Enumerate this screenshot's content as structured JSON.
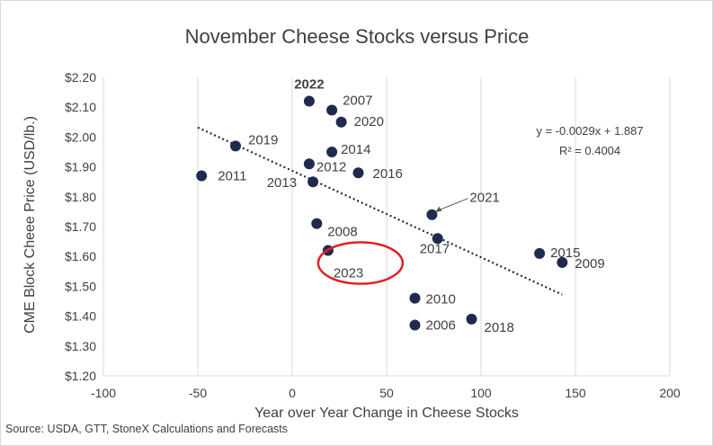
{
  "chart_data": {
    "type": "scatter",
    "title": "November Cheese Stocks versus Price",
    "xlabel": "Year over Year Change in Cheese Stocks",
    "ylabel": "CME Block Cheee Price (USD/lb.)",
    "source": "Source: USDA, GTT, StoneX Calculations and Forecasts",
    "xlim": [
      -100,
      200
    ],
    "ylim": [
      1.2,
      2.2
    ],
    "x_ticks": [
      -100,
      -50,
      0,
      50,
      100,
      150,
      200
    ],
    "x_tick_labels": [
      "-100",
      "-50",
      "0",
      "50",
      "100",
      "150",
      "200"
    ],
    "y_ticks": [
      1.2,
      1.3,
      1.4,
      1.5,
      1.6,
      1.7,
      1.8,
      1.9,
      2.0,
      2.1,
      2.2
    ],
    "y_tick_labels": [
      "$1.20",
      "$1.30",
      "$1.40",
      "$1.50",
      "$1.60",
      "$1.70",
      "$1.80",
      "$1.90",
      "$2.00",
      "$2.10",
      "$2.20"
    ],
    "grid": "vertical",
    "points": [
      {
        "label": "2022",
        "x": 9,
        "y": 2.12,
        "bold": true
      },
      {
        "label": "2007",
        "x": 21,
        "y": 2.09
      },
      {
        "label": "2020",
        "x": 26,
        "y": 2.05
      },
      {
        "label": "2019",
        "x": -30,
        "y": 1.97
      },
      {
        "label": "2014",
        "x": 21,
        "y": 1.95
      },
      {
        "label": "2012",
        "x": 9,
        "y": 1.91
      },
      {
        "label": "2011",
        "x": -48,
        "y": 1.87
      },
      {
        "label": "2016",
        "x": 35,
        "y": 1.88
      },
      {
        "label": "2013",
        "x": 11,
        "y": 1.85
      },
      {
        "label": "2021",
        "x": 74,
        "y": 1.74
      },
      {
        "label": "2008",
        "x": 13,
        "y": 1.71
      },
      {
        "label": "2017",
        "x": 77,
        "y": 1.66
      },
      {
        "label": "2023",
        "x": 19,
        "y": 1.62,
        "highlight": true
      },
      {
        "label": "2015",
        "x": 131,
        "y": 1.61
      },
      {
        "label": "2009",
        "x": 143,
        "y": 1.58
      },
      {
        "label": "2010",
        "x": 65,
        "y": 1.46
      },
      {
        "label": "2018",
        "x": 95,
        "y": 1.39
      },
      {
        "label": "2006",
        "x": 65,
        "y": 1.37
      }
    ],
    "trendline": {
      "slope": -0.0029,
      "intercept": 1.887,
      "x_range": [
        -50,
        143
      ],
      "style": "dotted"
    },
    "equation_text": "y = -0.0029x + 1.887",
    "r2_text": "R² = 0.4004",
    "marker_color": "#1f2a4d",
    "highlight_color": "#e02020"
  }
}
